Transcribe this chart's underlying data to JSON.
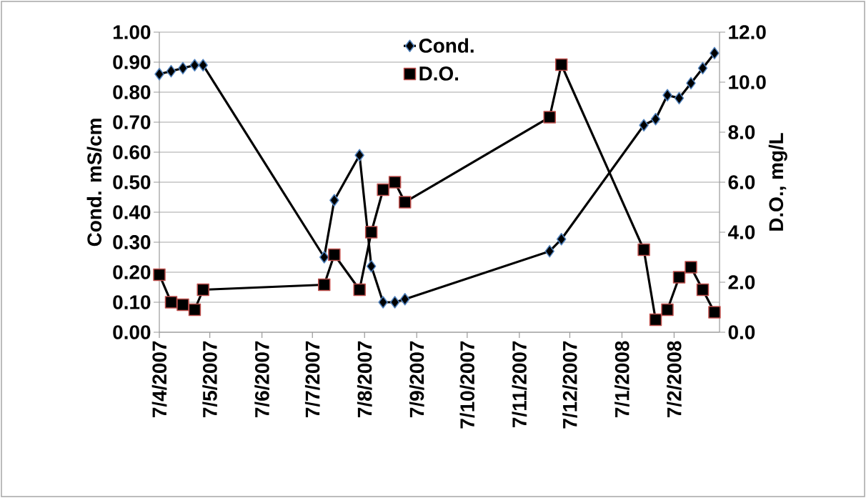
{
  "chart_data": {
    "type": "line",
    "ylabel": "Cond. mS/cm",
    "y2label": "D.O., mg/L",
    "x": [
      "2007-04-07",
      "2007-04-14",
      "2007-04-21",
      "2007-04-28",
      "2007-05-03",
      "2007-07-14",
      "2007-07-20",
      "2007-08-04",
      "2007-08-11",
      "2007-08-18",
      "2007-08-25",
      "2007-08-31",
      "2007-11-25",
      "2007-12-02",
      "2008-01-20",
      "2008-01-27",
      "2008-02-03",
      "2008-02-10",
      "2008-02-17",
      "2008-02-24",
      "2008-03-02"
    ],
    "series": [
      {
        "name": "Cond.",
        "color": "#4f81bd",
        "marker": "diamond",
        "values": [
          0.86,
          0.87,
          0.88,
          0.89,
          0.89,
          0.25,
          0.44,
          0.59,
          0.22,
          0.1,
          0.1,
          0.11,
          0.27,
          0.31,
          0.69,
          0.71,
          0.79,
          0.78,
          0.83,
          0.88,
          0.93
        ]
      },
      {
        "name": "D.O.",
        "color": "#c0504d",
        "marker": "square",
        "axis": "y2",
        "values": [
          2.3,
          1.2,
          1.1,
          0.9,
          1.7,
          1.9,
          3.1,
          1.7,
          4.0,
          5.7,
          6.0,
          5.2,
          8.6,
          10.7,
          3.3,
          0.5,
          0.9,
          2.2,
          2.6,
          1.7,
          0.8
        ]
      }
    ],
    "xlim": [
      "2007-04-07",
      "2008-03-05"
    ],
    "xticks": [
      {
        "value": "2007-04-07",
        "label": "7/4/2007"
      },
      {
        "value": "2007-05-07",
        "label": "7/5/2007"
      },
      {
        "value": "2007-06-07",
        "label": "7/6/2007"
      },
      {
        "value": "2007-07-07",
        "label": "7/7/2007"
      },
      {
        "value": "2007-08-07",
        "label": "7/8/2007"
      },
      {
        "value": "2007-09-07",
        "label": "7/9/2007"
      },
      {
        "value": "2007-10-07",
        "label": "7/10/2007"
      },
      {
        "value": "2007-11-07",
        "label": "7/11/2007"
      },
      {
        "value": "2007-12-07",
        "label": "7/12/2007"
      },
      {
        "value": "2008-01-07",
        "label": "7/1/2008"
      },
      {
        "value": "2008-02-07",
        "label": "7/2/2008"
      }
    ],
    "ylim": [
      0,
      1
    ],
    "yticks": [
      {
        "value": 0,
        "label": "0.00"
      },
      {
        "value": 0.1,
        "label": "0.10"
      },
      {
        "value": 0.2,
        "label": "0.20"
      },
      {
        "value": 0.3,
        "label": "0.30"
      },
      {
        "value": 0.4,
        "label": "0.40"
      },
      {
        "value": 0.5,
        "label": "0.50"
      },
      {
        "value": 0.6,
        "label": "0.60"
      },
      {
        "value": 0.7,
        "label": "0.70"
      },
      {
        "value": 0.8,
        "label": "0.80"
      },
      {
        "value": 0.9,
        "label": "0.90"
      },
      {
        "value": 1,
        "label": "1.00"
      }
    ],
    "y2lim": [
      0,
      12
    ],
    "y2ticks": [
      {
        "value": 0,
        "label": "0.0"
      },
      {
        "value": 2,
        "label": "2.0"
      },
      {
        "value": 4,
        "label": "4.0"
      },
      {
        "value": 6,
        "label": "6.0"
      },
      {
        "value": 8,
        "label": "8.0"
      },
      {
        "value": 10,
        "label": "10.0"
      },
      {
        "value": 12,
        "label": "12.0"
      }
    ],
    "grid": "y",
    "legend": "top",
    "line_style": "solid"
  }
}
